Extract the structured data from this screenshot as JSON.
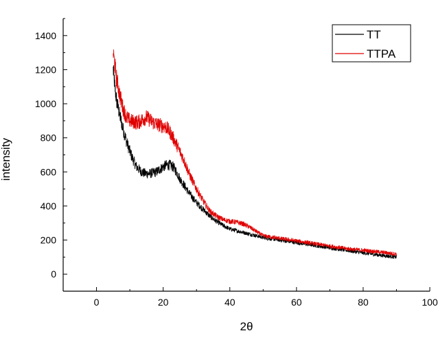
{
  "chart_data": {
    "type": "line",
    "xlabel": "2θ",
    "ylabel": "intensity",
    "xlim": [
      -10,
      100
    ],
    "ylim": [
      -100,
      1500
    ],
    "x_ticks": [
      0,
      20,
      40,
      60,
      80,
      100
    ],
    "y_ticks": [
      0,
      200,
      400,
      600,
      800,
      1000,
      1200,
      1400
    ],
    "legend_position": "top-right",
    "grid": false,
    "series": [
      {
        "name": "TT",
        "color": "#000000",
        "x": [
          5,
          5.5,
          6,
          7,
          8,
          9,
          10,
          11,
          12,
          13,
          14,
          15,
          16,
          17,
          18,
          19,
          20,
          21,
          22,
          23,
          24,
          25,
          26,
          27,
          28,
          30,
          32,
          34,
          36,
          38,
          40,
          42,
          44,
          46,
          48,
          50,
          55,
          60,
          65,
          70,
          75,
          80,
          85,
          90
        ],
        "y": [
          1200,
          1100,
          1020,
          930,
          850,
          780,
          720,
          670,
          630,
          610,
          595,
          590,
          590,
          595,
          600,
          615,
          630,
          640,
          640,
          630,
          600,
          560,
          530,
          500,
          470,
          420,
          380,
          340,
          310,
          285,
          265,
          255,
          245,
          235,
          225,
          215,
          200,
          185,
          170,
          155,
          140,
          125,
          112,
          100
        ]
      },
      {
        "name": "TTPA",
        "color": "#e00000",
        "x": [
          5,
          5.5,
          6,
          7,
          8,
          9,
          10,
          11,
          12,
          13,
          14,
          15,
          16,
          17,
          18,
          19,
          20,
          21,
          22,
          23,
          24,
          25,
          26,
          27,
          28,
          30,
          32,
          34,
          36,
          38,
          40,
          42,
          44,
          46,
          48,
          50,
          55,
          60,
          65,
          70,
          75,
          80,
          85,
          90
        ],
        "y": [
          1300,
          1230,
          1150,
          1050,
          970,
          920,
          900,
          895,
          890,
          895,
          910,
          920,
          905,
          890,
          880,
          875,
          870,
          860,
          835,
          800,
          760,
          720,
          680,
          630,
          580,
          500,
          430,
          370,
          340,
          320,
          310,
          305,
          295,
          275,
          250,
          225,
          210,
          195,
          180,
          165,
          150,
          140,
          130,
          118
        ]
      }
    ]
  }
}
